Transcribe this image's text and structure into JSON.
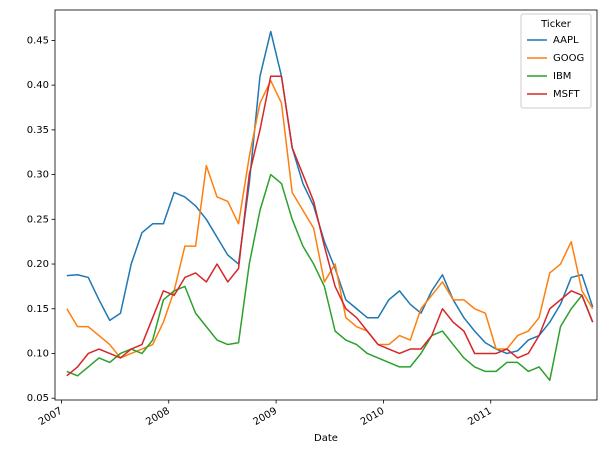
{
  "chart_data": {
    "type": "line",
    "x_label": "Date",
    "legend_title": "Ticker",
    "legend_position": "upper right",
    "x": [
      2007.05,
      2007.15,
      2007.25,
      2007.35,
      2007.45,
      2007.55,
      2007.65,
      2007.75,
      2007.85,
      2007.95,
      2008.05,
      2008.15,
      2008.25,
      2008.35,
      2008.45,
      2008.55,
      2008.65,
      2008.75,
      2008.85,
      2008.95,
      2009.05,
      2009.15,
      2009.25,
      2009.35,
      2009.45,
      2009.55,
      2009.65,
      2009.75,
      2009.85,
      2009.95,
      2010.05,
      2010.15,
      2010.25,
      2010.35,
      2010.45,
      2010.55,
      2010.65,
      2010.75,
      2010.85,
      2010.95,
      2011.05,
      2011.15,
      2011.25,
      2011.35,
      2011.45,
      2011.55,
      2011.65,
      2011.75,
      2011.85,
      2011.95
    ],
    "series": [
      {
        "name": "AAPL",
        "color": "#1f77b4",
        "values": [
          0.187,
          0.188,
          0.185,
          0.16,
          0.137,
          0.145,
          0.2,
          0.235,
          0.245,
          0.245,
          0.28,
          0.275,
          0.265,
          0.25,
          0.23,
          0.21,
          0.2,
          0.29,
          0.41,
          0.46,
          0.41,
          0.33,
          0.29,
          0.265,
          0.225,
          0.195,
          0.16,
          0.15,
          0.14,
          0.14,
          0.16,
          0.17,
          0.155,
          0.145,
          0.17,
          0.188,
          0.16,
          0.14,
          0.125,
          0.112,
          0.105,
          0.1,
          0.103,
          0.115,
          0.12,
          0.135,
          0.155,
          0.185,
          0.188,
          0.152
        ]
      },
      {
        "name": "GOOG",
        "color": "#ff7f0e",
        "values": [
          0.15,
          0.13,
          0.13,
          0.12,
          0.11,
          0.095,
          0.1,
          0.105,
          0.11,
          0.135,
          0.17,
          0.22,
          0.22,
          0.31,
          0.275,
          0.27,
          0.245,
          0.32,
          0.38,
          0.405,
          0.38,
          0.28,
          0.26,
          0.24,
          0.18,
          0.2,
          0.14,
          0.13,
          0.125,
          0.11,
          0.11,
          0.12,
          0.115,
          0.15,
          0.165,
          0.18,
          0.16,
          0.16,
          0.15,
          0.145,
          0.105,
          0.105,
          0.12,
          0.125,
          0.14,
          0.19,
          0.2,
          0.225,
          0.17,
          0.15
        ]
      },
      {
        "name": "IBM",
        "color": "#2ca02c",
        "values": [
          0.08,
          0.075,
          0.085,
          0.095,
          0.09,
          0.1,
          0.105,
          0.1,
          0.115,
          0.16,
          0.17,
          0.175,
          0.145,
          0.13,
          0.115,
          0.11,
          0.112,
          0.2,
          0.26,
          0.3,
          0.29,
          0.25,
          0.22,
          0.2,
          0.175,
          0.125,
          0.115,
          0.11,
          0.1,
          0.095,
          0.09,
          0.085,
          0.085,
          0.1,
          0.12,
          0.125,
          0.11,
          0.095,
          0.085,
          0.08,
          0.08,
          0.09,
          0.09,
          0.08,
          0.085,
          0.07,
          0.13,
          0.15,
          0.165,
          0.135
        ]
      },
      {
        "name": "MSFT",
        "color": "#d62728",
        "values": [
          0.075,
          0.085,
          0.1,
          0.105,
          0.1,
          0.095,
          0.105,
          0.11,
          0.14,
          0.17,
          0.165,
          0.185,
          0.19,
          0.18,
          0.2,
          0.18,
          0.195,
          0.3,
          0.35,
          0.41,
          0.41,
          0.33,
          0.3,
          0.27,
          0.22,
          0.175,
          0.15,
          0.14,
          0.125,
          0.11,
          0.105,
          0.1,
          0.105,
          0.105,
          0.12,
          0.15,
          0.135,
          0.125,
          0.1,
          0.1,
          0.1,
          0.105,
          0.095,
          0.1,
          0.12,
          0.15,
          0.16,
          0.17,
          0.165,
          0.135
        ]
      }
    ],
    "xlim": [
      2006.94,
      2011.99
    ],
    "xticks": [
      2007,
      2008,
      2009,
      2010,
      2011
    ],
    "ylim": [
      0.048,
      0.484
    ],
    "yticks": [
      0.05,
      {
        "value": 0.1,
        "label": "0.10"
      },
      0.15,
      {
        "value": 0.2,
        "label": "0.20"
      },
      0.25,
      {
        "value": 0.3,
        "label": "0.30"
      },
      0.35,
      {
        "value": 0.4,
        "label": "0.40"
      },
      0.45
    ],
    "grid": false
  }
}
